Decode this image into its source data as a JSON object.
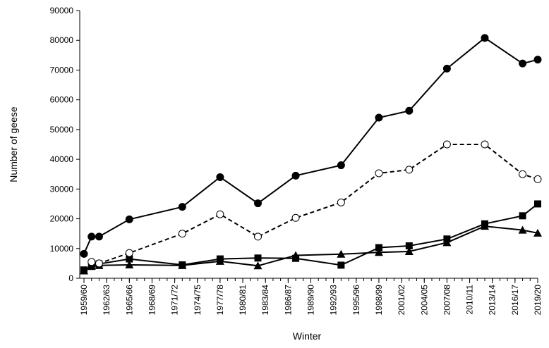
{
  "chart_data": {
    "type": "line",
    "title": "",
    "xlabel": "Winter",
    "ylabel": "Number of geese",
    "ylim": [
      0,
      90000
    ],
    "yticks": [
      0,
      10000,
      20000,
      30000,
      40000,
      50000,
      60000,
      70000,
      80000,
      90000
    ],
    "x_tick_labels": [
      "1959/60",
      "1962/63",
      "1965/66",
      "1968/69",
      "1971/72",
      "1974/75",
      "1977/78",
      "1980/81",
      "1983/84",
      "1986/87",
      "1989/90",
      "1992/93",
      "1995/96",
      "1998/99",
      "2001/02",
      "2004/05",
      "2007/08",
      "2010/11",
      "2013/14",
      "2016/17",
      "2019/20"
    ],
    "x_range": [
      1959,
      2019
    ],
    "grid": false,
    "legend": "none",
    "series": [
      {
        "marker": "filled-circle",
        "line_style": "solid",
        "x": [
          "1959/60",
          "1960/61",
          "1961/62",
          "1965/66",
          "1972/73",
          "1977/78",
          "1982/83",
          "1987/88",
          "1993/94",
          "1998/99",
          "2002/03",
          "2007/08",
          "2012/13",
          "2017/18",
          "2019/20"
        ],
        "values": [
          8200,
          14000,
          14000,
          19800,
          24000,
          34000,
          25200,
          34500,
          38000,
          54000,
          56300,
          70500,
          80800,
          72200,
          73500
        ]
      },
      {
        "marker": "open-circle",
        "line_style": "dashed",
        "x": [
          "1960/61",
          "1961/62",
          "1965/66",
          "1972/73",
          "1977/78",
          "1982/83",
          "1987/88",
          "1993/94",
          "1998/99",
          "2002/03",
          "2007/08",
          "2012/13",
          "2017/18",
          "2019/20"
        ],
        "values": [
          5500,
          5000,
          8500,
          15000,
          21500,
          14000,
          20300,
          25500,
          35300,
          36500,
          45000,
          45000,
          35000,
          33300
        ]
      },
      {
        "marker": "filled-square",
        "line_style": "solid",
        "x": [
          "1959/60",
          "1960/61",
          "1961/62",
          "1965/66",
          "1972/73",
          "1977/78",
          "1982/83",
          "1987/88",
          "1993/94",
          "1998/99",
          "2002/03",
          "2007/08",
          "2012/13",
          "2017/18",
          "2019/20"
        ],
        "values": [
          2800,
          4000,
          4800,
          6500,
          4500,
          6500,
          6800,
          6700,
          4400,
          10300,
          10900,
          13200,
          18300,
          21000,
          25000
        ]
      },
      {
        "marker": "filled-triangle",
        "line_style": "solid",
        "x": [
          "1959/60",
          "1960/61",
          "1961/62",
          "1965/66",
          "1972/73",
          "1977/78",
          "1982/83",
          "1987/88",
          "1993/94",
          "1998/99",
          "2002/03",
          "2007/08",
          "2012/13",
          "2017/18",
          "2019/20"
        ],
        "values": [
          2500,
          4000,
          4300,
          4500,
          4300,
          5700,
          4200,
          7700,
          8100,
          8700,
          9000,
          12000,
          17500,
          16200,
          15200
        ]
      }
    ]
  }
}
